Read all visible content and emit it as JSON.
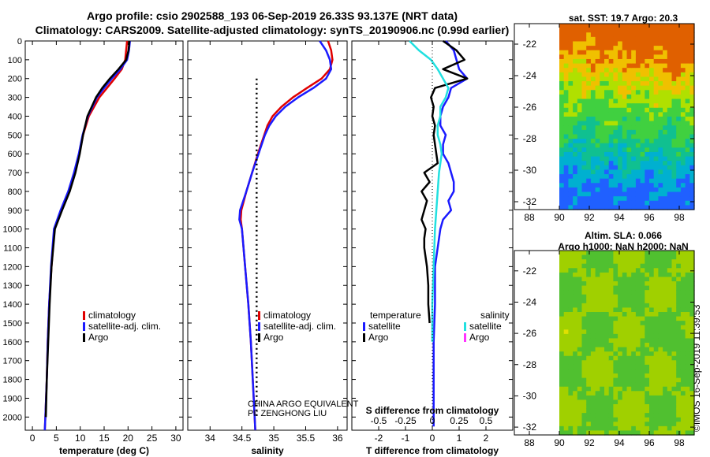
{
  "header": {
    "line1": "Argo profile: csio 2902588_193 06-Sep-2019 26.33S 93.137E (NRT data)",
    "line2": "Climatology: CARS2009. Satellite-adjusted climatology: synTS_20190906.nc (0.99d earlier)"
  },
  "colors": {
    "climatology": "#e00000",
    "satellite": "#1a1aff",
    "argo": "#000000",
    "sat_salinity": "#22e0e0",
    "argo_salinity": "#ff33ff"
  },
  "depth_axis": {
    "ylim": [
      2070,
      0
    ],
    "ticks": [
      0,
      100,
      200,
      300,
      400,
      500,
      600,
      700,
      800,
      900,
      1000,
      1100,
      1200,
      1300,
      1400,
      1500,
      1600,
      1700,
      1800,
      1900,
      2000
    ]
  },
  "chart_data": [
    {
      "type": "line",
      "id": "temperature",
      "xlabel": "temperature (deg C)",
      "xlim": [
        -1.5,
        31.5
      ],
      "xticks": [
        0,
        5,
        10,
        15,
        20,
        25,
        30
      ],
      "legend": [
        "climatology",
        "satellite-adj. clim.",
        "Argo"
      ],
      "series": [
        {
          "name": "climatology",
          "depth": [
            0,
            50,
            100,
            150,
            200,
            250,
            300,
            400,
            500,
            600,
            700,
            800,
            900,
            1000,
            1200,
            1400,
            1600,
            1800,
            2000,
            2070
          ],
          "values": [
            19.8,
            19.6,
            19.4,
            18.7,
            17.2,
            15.6,
            14.0,
            11.8,
            10.6,
            9.8,
            8.8,
            7.6,
            6.0,
            4.6,
            4.0,
            3.5,
            3.2,
            3.0,
            2.7,
            2.6
          ]
        },
        {
          "name": "satellite-adj. clim.",
          "depth": [
            0,
            50,
            100,
            150,
            200,
            250,
            300,
            400,
            500,
            600,
            700,
            800,
            900,
            1000,
            1200,
            1400,
            1600,
            1800,
            2000,
            2070
          ],
          "values": [
            20.4,
            20.2,
            19.8,
            18.4,
            16.6,
            15.0,
            13.5,
            11.6,
            10.5,
            9.7,
            8.7,
            7.5,
            5.9,
            4.5,
            3.9,
            3.5,
            3.2,
            3.0,
            2.7,
            2.6
          ]
        },
        {
          "name": "Argo",
          "depth": [
            0,
            50,
            100,
            150,
            200,
            250,
            300,
            400,
            500,
            600,
            700,
            800,
            900,
            1000,
            1200,
            1400,
            1600,
            1800,
            2000
          ],
          "values": [
            20.3,
            20.1,
            19.6,
            18.0,
            16.2,
            14.6,
            13.3,
            11.5,
            10.6,
            9.9,
            9.0,
            7.8,
            6.2,
            4.7,
            4.0,
            3.6,
            3.3,
            3.0,
            2.8
          ]
        }
      ]
    },
    {
      "type": "line",
      "id": "salinity",
      "xlabel": "salinity",
      "xlim": [
        33.65,
        36.15
      ],
      "xticks": [
        34,
        34.5,
        35,
        35.5,
        36
      ],
      "xtick_labels": [
        "34",
        "34.5",
        "35",
        "35.5",
        "36"
      ],
      "legend": [
        "climatology",
        "satellite-adj. clim.",
        "Argo"
      ],
      "series": [
        {
          "name": "climatology",
          "depth": [
            0,
            50,
            100,
            150,
            200,
            250,
            300,
            350,
            400,
            450,
            500,
            600,
            700,
            800,
            850,
            900,
            950,
            1000,
            1200,
            1400,
            1600,
            1800,
            2000,
            2070
          ],
          "values": [
            35.85,
            35.9,
            35.92,
            35.88,
            35.75,
            35.52,
            35.3,
            35.12,
            34.98,
            34.9,
            34.85,
            34.75,
            34.66,
            34.57,
            34.53,
            34.49,
            34.48,
            34.5,
            34.55,
            34.6,
            34.64,
            34.67,
            34.7,
            34.71
          ]
        },
        {
          "name": "satellite-adj. clim.",
          "depth": [
            0,
            50,
            100,
            150,
            200,
            250,
            300,
            350,
            400,
            450,
            500,
            600,
            700,
            800,
            850,
            900,
            950,
            1000,
            1200,
            1400,
            1600,
            1800,
            2000,
            2070
          ],
          "values": [
            35.72,
            35.82,
            35.88,
            35.9,
            35.82,
            35.62,
            35.38,
            35.18,
            35.03,
            34.93,
            34.86,
            34.76,
            34.66,
            34.57,
            34.52,
            34.47,
            34.46,
            34.5,
            34.55,
            34.6,
            34.64,
            34.67,
            34.7,
            34.71
          ]
        },
        {
          "name": "Argo",
          "depth": [
            200,
            250,
            300,
            350,
            400,
            450,
            500,
            550,
            600,
            650,
            700,
            750,
            800,
            850,
            900,
            950,
            1000,
            1050,
            1100,
            1150,
            1200,
            1250,
            1300,
            1350,
            1400,
            1450,
            1500,
            1550,
            1600,
            1650,
            1700,
            1750,
            1800,
            1850,
            1900,
            1950,
            2000
          ],
          "values": [
            34.73,
            34.73,
            34.73,
            34.73,
            34.73,
            34.73,
            34.73,
            34.73,
            34.73,
            34.73,
            34.73,
            34.73,
            34.73,
            34.73,
            34.73,
            34.73,
            34.73,
            34.73,
            34.73,
            34.73,
            34.73,
            34.73,
            34.73,
            34.73,
            34.73,
            34.73,
            34.73,
            34.73,
            34.73,
            34.73,
            34.73,
            34.73,
            34.73,
            34.73,
            34.73,
            34.73,
            34.73
          ]
        }
      ],
      "annotations": [
        "CHINA ARGO EQUIVALENT",
        "PI: ZENGHONG LIU"
      ]
    },
    {
      "type": "line",
      "id": "difference",
      "xlabel": "T difference from climatology",
      "xlabel_top": "S difference from climatology",
      "xlim": [
        -3,
        3
      ],
      "xticks": [
        -2,
        -1,
        0,
        1,
        2
      ],
      "xtick_labels": [
        "-2",
        "-1",
        "0",
        "1",
        "2"
      ],
      "top_xticks": [
        -2,
        -1,
        0,
        1,
        2
      ],
      "top_xtick_labels": [
        "-0.5",
        "-0.25",
        "0",
        "0.25",
        "0.5"
      ],
      "legend_temperature_title": "temperature",
      "legend_salinity_title": "salinity",
      "legend_temperature": [
        "satellite",
        "Argo"
      ],
      "legend_salinity": [
        "satellite",
        "Argo"
      ],
      "series": [
        {
          "name": "T satellite",
          "depth": [
            0,
            50,
            100,
            150,
            200,
            250,
            300,
            350,
            400,
            450,
            500,
            550,
            600,
            650,
            700,
            750,
            800,
            850,
            900,
            950,
            1000,
            1100,
            1200,
            1400,
            1600,
            1800,
            2000,
            2050
          ],
          "values": [
            0.5,
            0.8,
            0.9,
            1.0,
            1.3,
            0.7,
            0.6,
            0.4,
            0.3,
            0.3,
            0.5,
            0.4,
            0.4,
            0.6,
            0.7,
            0.8,
            0.8,
            0.6,
            0.7,
            0.4,
            0.3,
            0.2,
            0.1,
            0.1,
            0.05,
            0.05,
            0.05,
            0.05
          ]
        },
        {
          "name": "T Argo",
          "depth": [
            0,
            50,
            100,
            150,
            200,
            250,
            300,
            350,
            400,
            450,
            500,
            550,
            600,
            650,
            700,
            750,
            800,
            850,
            900,
            950,
            1000,
            1050,
            1100,
            1200,
            1300,
            1400,
            1500
          ],
          "values": [
            0.4,
            0.9,
            1.2,
            0.4,
            1.3,
            0.1,
            -0.05,
            0.05,
            0.0,
            0.1,
            0.05,
            0.1,
            0.15,
            0.2,
            -0.3,
            -0.1,
            -0.4,
            -0.2,
            -0.3,
            -0.4,
            -0.25,
            -0.3,
            -0.3,
            -0.2,
            -0.15,
            -0.15,
            -0.1
          ]
        },
        {
          "name": "S satellite",
          "depth": [
            0,
            50,
            100,
            150,
            200,
            250,
            300,
            350,
            400,
            450,
            500,
            550,
            600,
            700,
            800,
            900,
            1000,
            1200,
            1400,
            1600
          ],
          "values": [
            -0.85,
            -0.5,
            -0.05,
            0.2,
            0.4,
            0.6,
            0.5,
            0.3,
            0.3,
            0.2,
            0.2,
            0.3,
            0.35,
            0.25,
            0.2,
            0.15,
            0.1,
            0.05,
            0.0,
            0.0
          ]
        }
      ]
    },
    {
      "type": "heatmap",
      "id": "sst-map",
      "title": "sat. SST: 19.7 Argo: 20.3",
      "xticks": [
        88,
        90,
        92,
        94,
        96,
        98
      ],
      "xtick_labels": [
        "88",
        "90",
        "92",
        "94",
        "96",
        "98"
      ],
      "yticks": [
        -22,
        -24,
        -26,
        -28,
        -30,
        -32
      ],
      "ytick_labels": [
        "-22",
        "-24",
        "-26",
        "-28",
        "-30",
        "-32"
      ],
      "xlim": [
        87,
        99
      ],
      "ylim": [
        -32.5,
        -20.7
      ],
      "data_xlim": [
        90,
        99
      ],
      "value_range": [
        18,
        22.5
      ]
    },
    {
      "type": "heatmap",
      "id": "sla-map",
      "title_line1": "Altim. SLA: 0.066",
      "title_line2": "Argo h1000: NaN h2000: NaN",
      "xticks": [
        88,
        90,
        92,
        94,
        96,
        98
      ],
      "xtick_labels": [
        "88",
        "90",
        "92",
        "94",
        "96",
        "98"
      ],
      "yticks": [
        -22,
        -24,
        -26,
        -28,
        -30,
        -32
      ],
      "ytick_labels": [
        "-22",
        "-24",
        "-26",
        "-28",
        "-30",
        "-32"
      ],
      "xlim": [
        87,
        99
      ],
      "ylim": [
        -32.5,
        -20.7
      ],
      "data_xlim": [
        90,
        99
      ],
      "value_range": [
        -0.1,
        0.2
      ]
    }
  ],
  "footer": {
    "stamp": "©IMOS 16-Sep-2019 11:39:53"
  }
}
